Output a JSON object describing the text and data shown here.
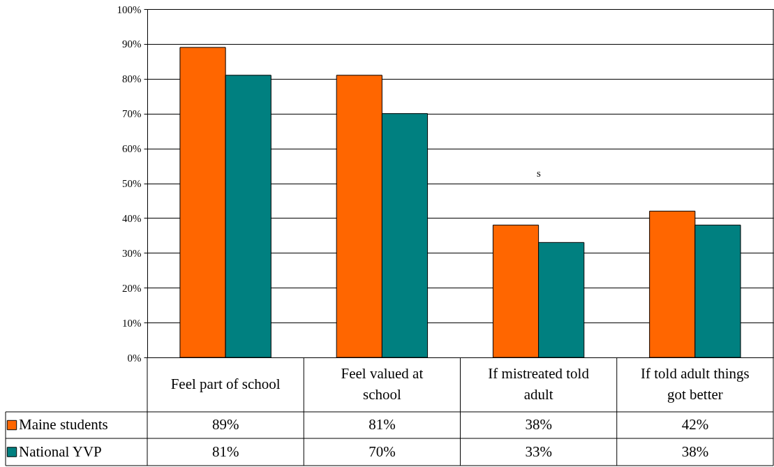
{
  "chart_data": {
    "type": "bar",
    "categories": [
      "Feel part of school",
      "Feel valued at school",
      "If mistreated told adult",
      "If told adult things got better"
    ],
    "series": [
      {
        "name": "Maine students",
        "color": "#ff6600",
        "values": [
          89,
          81,
          38,
          42
        ],
        "value_labels": [
          "89%",
          "81%",
          "38%",
          "42%"
        ]
      },
      {
        "name": "National YVP",
        "color": "#008080",
        "values": [
          81,
          70,
          33,
          38
        ],
        "value_labels": [
          "81%",
          "70%",
          "33%",
          "38%"
        ]
      }
    ],
    "ylim": [
      0,
      100
    ],
    "yticks": [
      {
        "value": 0,
        "label": "0%"
      },
      {
        "value": 10,
        "label": "10%"
      },
      {
        "value": 20,
        "label": "20%"
      },
      {
        "value": 30,
        "label": "30%"
      },
      {
        "value": 40,
        "label": "40%"
      },
      {
        "value": 50,
        "label": "50%"
      },
      {
        "value": 60,
        "label": "60%"
      },
      {
        "value": 70,
        "label": "70%"
      },
      {
        "value": 80,
        "label": "80%"
      },
      {
        "value": 90,
        "label": "90%"
      },
      {
        "value": 100,
        "label": "100%"
      }
    ],
    "grid": "y",
    "legend": "bottom",
    "annotations": [
      "s"
    ]
  }
}
